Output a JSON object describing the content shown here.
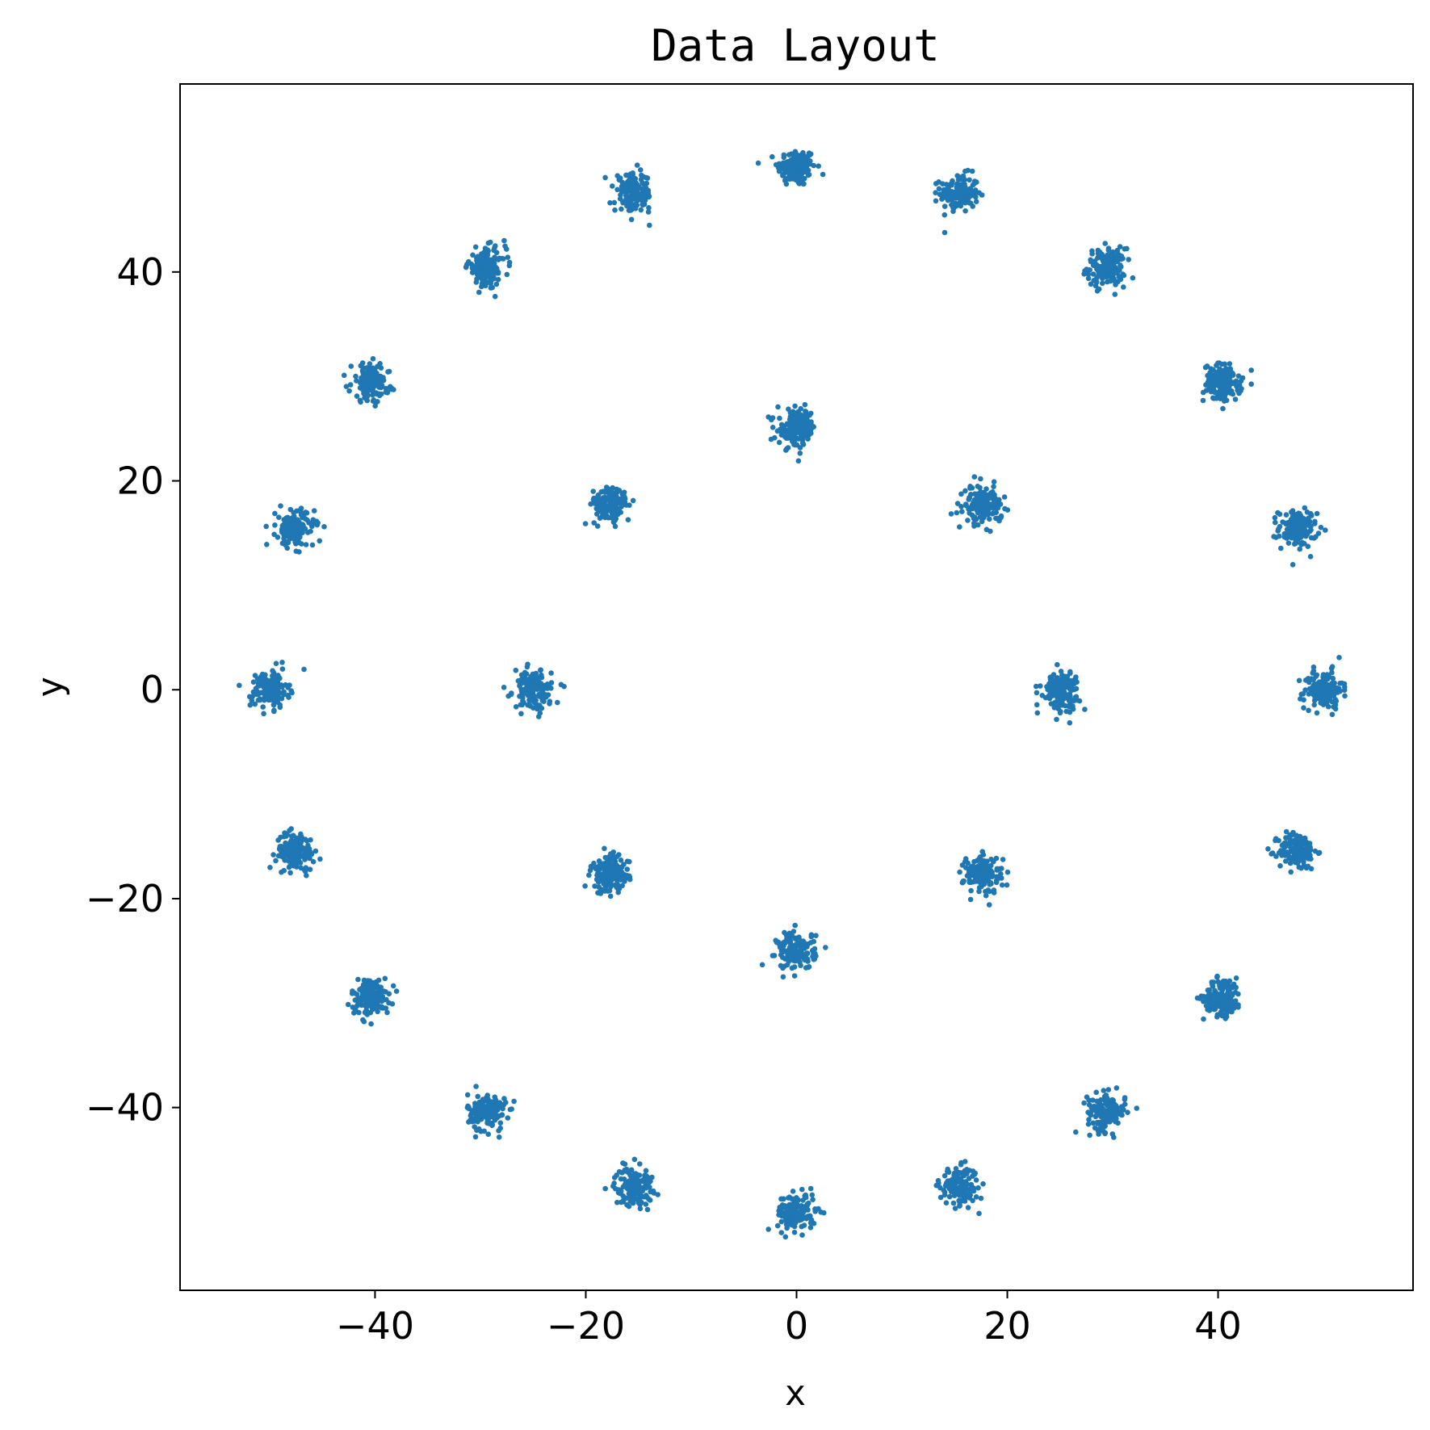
{
  "chart_data": {
    "type": "scatter",
    "title": "Data Layout",
    "xlabel": "x",
    "ylabel": "y",
    "xlim": [
      -58.5,
      58.5
    ],
    "ylim": [
      -57.5,
      58
    ],
    "xticks": [
      -40,
      -20,
      0,
      20,
      40
    ],
    "yticks": [
      -40,
      -20,
      0,
      20,
      40
    ],
    "grid": false,
    "legend": "none",
    "marker_color": "#1f77b4",
    "points_per_cluster": 150,
    "cluster_spread_sd": 0.9,
    "cluster_centers": [
      [
        0,
        50
      ],
      [
        15.45,
        47.55
      ],
      [
        29.39,
        40.45
      ],
      [
        40.45,
        29.39
      ],
      [
        47.55,
        15.45
      ],
      [
        50,
        0
      ],
      [
        47.55,
        -15.45
      ],
      [
        40.45,
        -29.39
      ],
      [
        29.39,
        -40.45
      ],
      [
        15.45,
        -47.55
      ],
      [
        0,
        -50
      ],
      [
        -15.45,
        -47.55
      ],
      [
        -29.39,
        -40.45
      ],
      [
        -40.45,
        -29.39
      ],
      [
        -47.55,
        -15.45
      ],
      [
        -50,
        0
      ],
      [
        -47.55,
        15.45
      ],
      [
        -40.45,
        29.39
      ],
      [
        -29.39,
        40.45
      ],
      [
        -15.45,
        47.55
      ],
      [
        0,
        25
      ],
      [
        17.68,
        17.68
      ],
      [
        25,
        0
      ],
      [
        17.68,
        -17.68
      ],
      [
        0,
        -25
      ],
      [
        -17.68,
        -17.68
      ],
      [
        -25,
        0
      ],
      [
        -17.68,
        17.68
      ]
    ]
  }
}
